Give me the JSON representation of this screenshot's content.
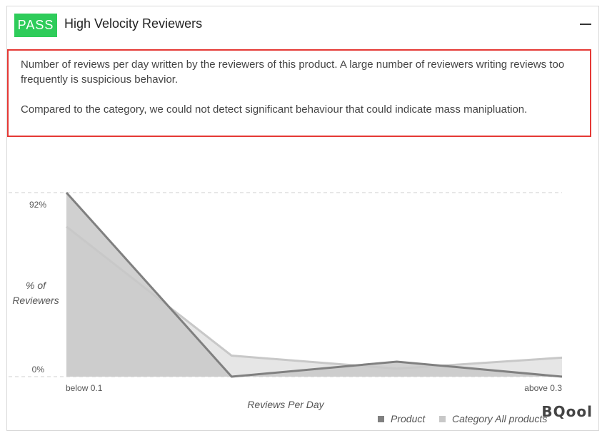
{
  "header": {
    "status_badge": "PASS",
    "status_color": "#2ecc5a",
    "title": "High Velocity Reviewers",
    "collapse_icon": "minus-icon"
  },
  "description": {
    "line1": "Number of reviews per day written by the reviewers of this product. A large number of reviewers writing reviews too frequently is suspicious behavior.",
    "line2": "Compared to the category, we could not detect significant behaviour that could indicate mass manipluation.",
    "highlight_color": "#e53935"
  },
  "chart_data": {
    "type": "area",
    "x_tick_labels": [
      "below 0.1",
      "above 0.3"
    ],
    "x_points": 4,
    "y_tick_labels": [
      "92%",
      "0%"
    ],
    "ylim": [
      0,
      92
    ],
    "ylabel_line1": "% of",
    "ylabel_line2": "Reviewers",
    "xlabel": "Reviews Per Day",
    "series": [
      {
        "name": "Product",
        "values": [
          92,
          0,
          7.5,
          0
        ],
        "color": "#808080",
        "fill": "#c8c8c8"
      },
      {
        "name": "Category All products",
        "values": [
          75,
          10.5,
          4,
          9.5
        ],
        "color": "#c8c8c8",
        "fill": "#e6e6e6"
      }
    ],
    "grid": "dashed top and bottom reference lines",
    "legend": "bottom-right"
  },
  "watermark": "BQool"
}
